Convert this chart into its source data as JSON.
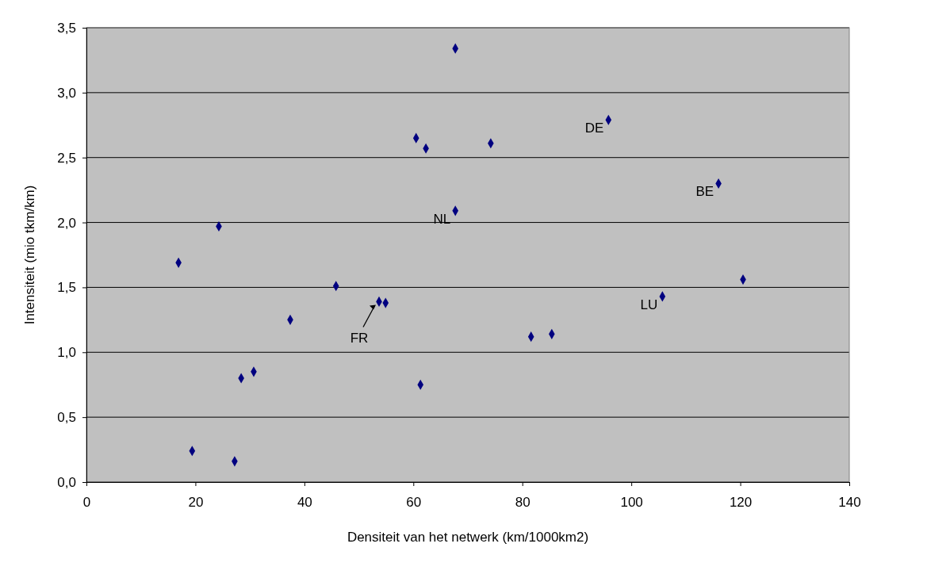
{
  "chart_data": {
    "type": "scatter",
    "xlabel": "Densiteit van het netwerk (km/1000km2)",
    "ylabel": "Intensiteit (mio tkm/km)",
    "x": [
      16.9,
      19.4,
      24.3,
      27.2,
      28.4,
      30.7,
      37.4,
      45.8,
      53.7,
      54.9,
      60.5,
      61.3,
      62.3,
      67.7,
      67.7,
      74.2,
      81.6,
      85.4,
      95.8,
      105.7,
      116.0,
      120.5
    ],
    "series": [
      {
        "color": "#000080",
        "values": [
          1.69,
          0.24,
          1.97,
          0.16,
          0.8,
          0.85,
          1.25,
          1.51,
          1.39,
          1.38,
          2.65,
          0.75,
          2.57,
          3.34,
          2.09,
          2.61,
          1.12,
          1.14,
          2.79,
          1.43,
          2.3,
          1.56
        ]
      }
    ],
    "xlim": [
      0,
      140
    ],
    "xticks": [
      0,
      20,
      40,
      60,
      80,
      100,
      120,
      140
    ],
    "ylim": [
      0,
      3.5
    ],
    "yticks": [
      {
        "value": 0,
        "label": "0,0"
      },
      {
        "value": 0.5,
        "label": "0,5"
      },
      {
        "value": 1,
        "label": "1,0"
      },
      {
        "value": 1.5,
        "label": "1,5"
      },
      {
        "value": 2,
        "label": "2,0"
      },
      {
        "value": 2.5,
        "label": "2,5"
      },
      {
        "value": 3,
        "label": "3,0"
      },
      {
        "value": 3.5,
        "label": "3,5"
      }
    ],
    "grid": "y",
    "marker": "diamond",
    "annotations": [
      {
        "text": "DE",
        "x": 95.8,
        "y": 2.79
      },
      {
        "text": "BE",
        "x": 116.0,
        "y": 2.3
      },
      {
        "text": "NL",
        "x": 67.7,
        "y": 2.09
      },
      {
        "text": "LU",
        "x": 105.7,
        "y": 1.43
      },
      {
        "text": "FR",
        "x": 53.7,
        "y": 1.39
      }
    ]
  }
}
